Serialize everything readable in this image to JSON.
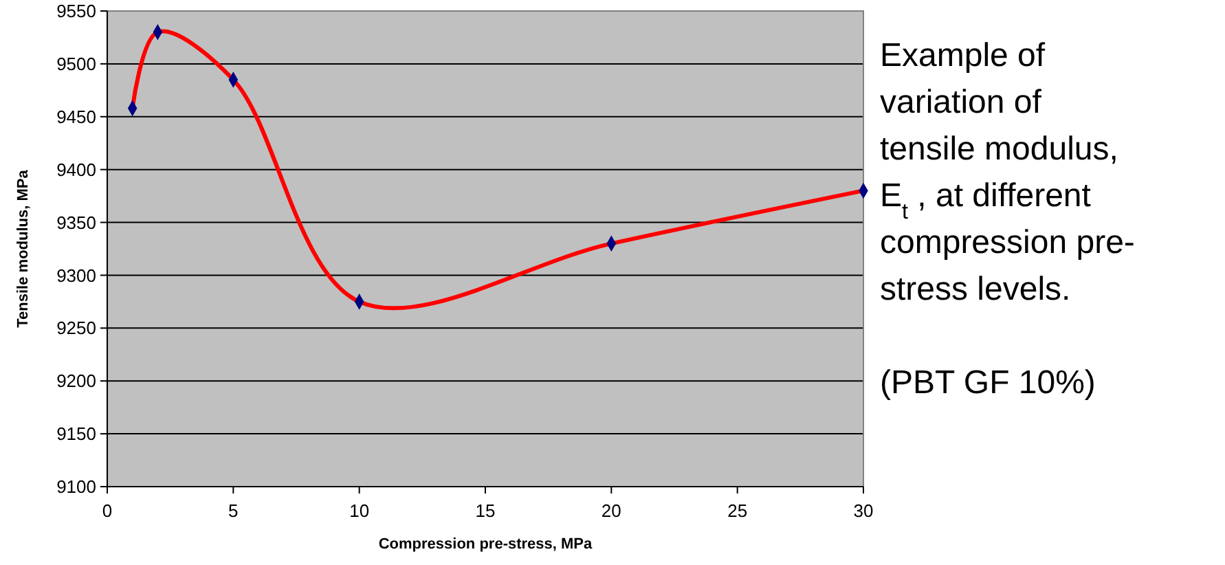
{
  "chart_data": {
    "type": "line",
    "xlabel": "Compression pre-stress, MPa",
    "ylabel": "Tensile modulus, MPa",
    "x": [
      1,
      2,
      5,
      10,
      20,
      30
    ],
    "series": [
      {
        "color": "#ff0000",
        "values": [
          9458,
          9530,
          9485,
          9275,
          9330,
          9380
        ]
      },
      {
        "type": "scatter",
        "color": "#000080",
        "marker": "diamond",
        "values": [
          9458,
          9530,
          9485,
          9275,
          9330,
          9380
        ]
      }
    ],
    "grid": "y",
    "xlim": [
      0,
      30
    ],
    "xticks": [
      0,
      5,
      10,
      15,
      20,
      25,
      30
    ],
    "ylim": [
      9100,
      9550
    ],
    "yticks": [
      9100,
      9150,
      9200,
      9250,
      9300,
      9350,
      9400,
      9450,
      9500,
      9550
    ],
    "annotations": [
      "Example of variation of tensile modulus, E$_{t}$ , at different compression pre-stress levels.",
      "(PBT GF 10%)"
    ]
  }
}
